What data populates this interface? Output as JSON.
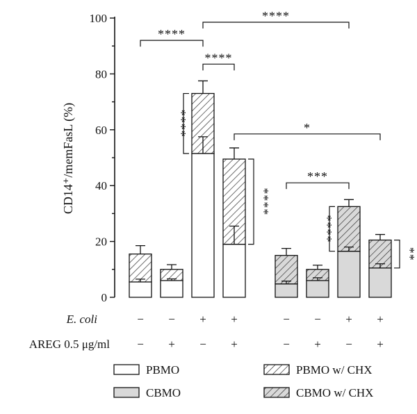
{
  "chart_data": {
    "type": "bar",
    "stacked": true,
    "ylabel": "CD14⁺/memFasL (%)",
    "ylim": [
      0,
      100
    ],
    "yticks": [
      0,
      20,
      40,
      60,
      80,
      100
    ],
    "grid": false,
    "legend_position": "bottom",
    "colors": {
      "PBMO": "#ffffff",
      "CBMO": "#d9d9d9",
      "outline": "#111111"
    },
    "conditions": {
      "rows": [
        {
          "label": "E. coli",
          "italic": true,
          "values": [
            "−",
            "−",
            "+",
            "+",
            "−",
            "−",
            "+",
            "+"
          ]
        },
        {
          "label": "AREG 0.5 μg/ml",
          "values": [
            "−",
            "+",
            "−",
            "+",
            "−",
            "+",
            "−",
            "+"
          ]
        }
      ]
    },
    "bars": [
      {
        "group": "PBMO",
        "base": 5.5,
        "base_err": 1.0,
        "total": 15.5,
        "total_err": 3.0
      },
      {
        "group": "PBMO",
        "base": 6.0,
        "base_err": 0.6,
        "total": 10.0,
        "total_err": 1.7
      },
      {
        "group": "PBMO",
        "base": 51.5,
        "base_err": 6.0,
        "total": 73.0,
        "total_err": 4.5
      },
      {
        "group": "PBMO",
        "base": 19.0,
        "base_err": 6.5,
        "total": 49.5,
        "total_err": 4.0
      },
      {
        "group": "CBMO",
        "base": 4.8,
        "base_err": 1.0,
        "total": 15.0,
        "total_err": 2.5
      },
      {
        "group": "CBMO",
        "base": 6.0,
        "base_err": 1.0,
        "total": 10.0,
        "total_err": 1.5
      },
      {
        "group": "CBMO",
        "base": 16.5,
        "base_err": 1.5,
        "total": 32.5,
        "total_err": 2.5
      },
      {
        "group": "CBMO",
        "base": 10.5,
        "base_err": 1.5,
        "total": 20.5,
        "total_err": 2.0
      }
    ],
    "series": [
      {
        "name": "PBMO",
        "pattern": "solid",
        "fill": "#ffffff"
      },
      {
        "name": "PBMO w/ CHX",
        "pattern": "hatched",
        "fill": "#ffffff"
      },
      {
        "name": "CBMO",
        "pattern": "solid",
        "fill": "#d9d9d9"
      },
      {
        "name": "CBMO w/ CHX",
        "pattern": "hatched",
        "fill": "#d9d9d9"
      }
    ],
    "annotations": [
      {
        "kind": "top",
        "from": 0,
        "to": 2,
        "y": 92,
        "label": "****"
      },
      {
        "kind": "top",
        "from": 2,
        "to": 6,
        "y": 98.5,
        "label": "****"
      },
      {
        "kind": "top",
        "from": 2,
        "to": 3,
        "y": 83.5,
        "label": "****"
      },
      {
        "kind": "top",
        "from": 3,
        "to": 7,
        "y": 58.5,
        "label": "*"
      },
      {
        "kind": "top",
        "from": 4,
        "to": 6,
        "y": 41.0,
        "label": "***"
      },
      {
        "kind": "side",
        "bar": 2,
        "side": "left",
        "y1": 51.5,
        "y2": 73.0,
        "label": "****"
      },
      {
        "kind": "side",
        "bar": 3,
        "side": "right",
        "y1": 19.0,
        "y2": 49.5,
        "label": "****"
      },
      {
        "kind": "side",
        "bar": 6,
        "side": "left",
        "y1": 16.5,
        "y2": 32.5,
        "label": "****"
      },
      {
        "kind": "side",
        "bar": 7,
        "side": "right",
        "y1": 10.5,
        "y2": 20.5,
        "label": "**"
      }
    ]
  }
}
